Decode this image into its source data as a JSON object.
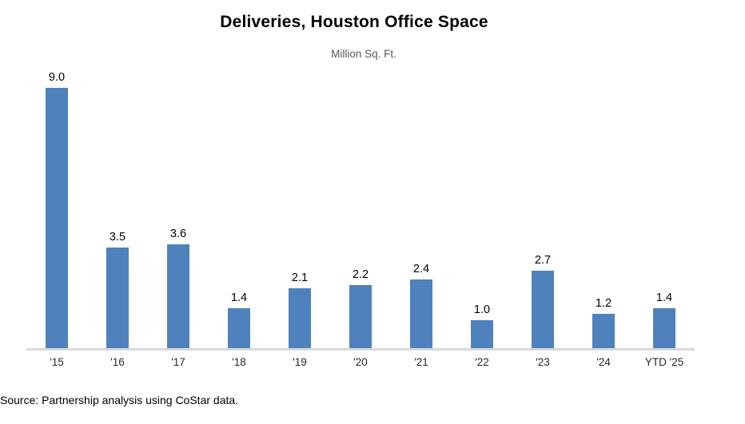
{
  "title": "Deliveries, Houston Office Space",
  "subtitle": "Million Sq. Ft.",
  "source": "Source: Partnership analysis using CoStar data.",
  "colors": {
    "bar": "#4F81BD",
    "axis_line": "#D9D9D9",
    "title_text": "#000000",
    "subtitle_text": "#595959",
    "label_text": "#262626"
  },
  "chart_data": {
    "type": "bar",
    "title": "Deliveries, Houston Office Space",
    "subtitle": "Million Sq. Ft.",
    "categories": [
      "'15",
      "'16",
      "'17",
      "'18",
      "'19",
      "'20",
      "'21",
      "'22",
      "'23",
      "'24",
      "YTD '25"
    ],
    "values": [
      9.0,
      3.5,
      3.6,
      1.4,
      2.1,
      2.2,
      2.4,
      1.0,
      2.7,
      1.2,
      1.4
    ],
    "data_labels": [
      "9.0",
      "3.5",
      "3.6",
      "1.4",
      "2.1",
      "2.2",
      "2.4",
      "1.0",
      "2.7",
      "1.2",
      "1.4"
    ],
    "xlabel": "",
    "ylabel": "Million Sq. Ft.",
    "ylim": [
      0,
      9.0
    ],
    "grid": false,
    "legend_position": "none",
    "source": "Source: Partnership analysis using CoStar data."
  }
}
